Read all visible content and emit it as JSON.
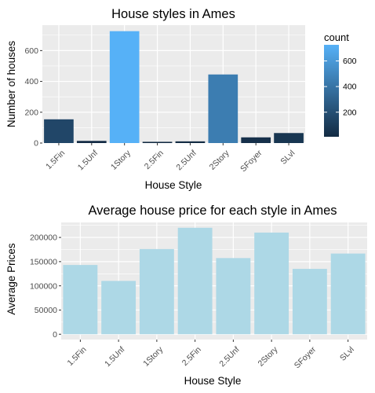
{
  "chart_data": [
    {
      "type": "bar",
      "title": "House styles in Ames",
      "xlabel": "House Style",
      "ylabel": "Number of houses",
      "categories": [
        "1.5Fin",
        "1.5Unf",
        "1Story",
        "2.5Fin",
        "2.5Unf",
        "2Story",
        "SFoyer",
        "SLvl"
      ],
      "values": [
        154,
        14,
        726,
        8,
        11,
        445,
        37,
        65
      ],
      "ylim": [
        0,
        765
      ],
      "yticks": [
        0,
        200,
        400,
        600
      ],
      "grid": true,
      "fill_scale": {
        "title": "count",
        "low": 8,
        "high": 726,
        "low_color": "#132B43",
        "high_color": "#56B1F7",
        "ticks": [
          200,
          400,
          600
        ],
        "legend_position": "right"
      },
      "panel_color": "#EBEBEB"
    },
    {
      "type": "bar",
      "title": "Average house price for each style in Ames",
      "xlabel": "House Style",
      "ylabel": "Average Prices",
      "categories": [
        "1.5Fin",
        "1.5Unf",
        "1Story",
        "2.5Fin",
        "2.5Unf",
        "2Story",
        "SFoyer",
        "SLvl"
      ],
      "values": [
        143117,
        110150,
        175985,
        220000,
        157355,
        210052,
        135074,
        166703
      ],
      "ylim": [
        -11000,
        231000
      ],
      "yticks": [
        0,
        50000,
        100000,
        150000,
        200000
      ],
      "grid": true,
      "bar_color": "#ADD8E6",
      "panel_color": "#EBEBEB"
    }
  ]
}
